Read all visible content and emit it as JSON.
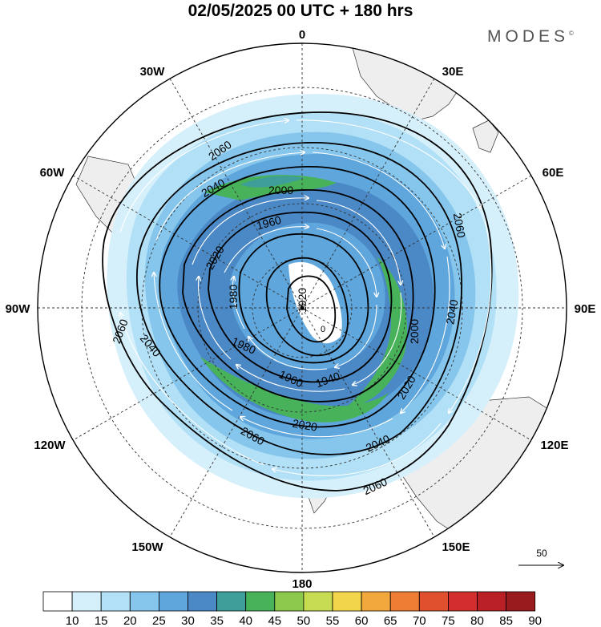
{
  "header": {
    "title": "02/05/2025  00 UTC  + 180 hrs",
    "brand": "MODES",
    "brand_mark": "©"
  },
  "map": {
    "projection": "south polar stereographic",
    "longitude_labels": {
      "top": "0",
      "top_left": "30W",
      "top_right": "30E",
      "upper_left": "60W",
      "upper_right": "60E",
      "left": "90W",
      "right": "90E",
      "lower_left": "120W",
      "lower_right": "120E",
      "bottom_left": "150W",
      "bottom_right": "150E",
      "bottom": "180"
    },
    "contour_labels": [
      "2060",
      "2040",
      "2020",
      "2000",
      "1980",
      "1960",
      "1940",
      "1920",
      "2060",
      "2040",
      "2020",
      "2000",
      "1980",
      "1960",
      "2060",
      "2040",
      "2020"
    ],
    "low_marker": "0",
    "reference_vector": {
      "label": "50"
    },
    "colors": {
      "land": "#eeeeee",
      "ocean": "#ffffff",
      "contour": "#000000",
      "wind_arrow": "#ffffff"
    }
  },
  "colorbar": {
    "ticks": [
      "10",
      "15",
      "20",
      "25",
      "30",
      "35",
      "40",
      "45",
      "50",
      "55",
      "60",
      "65",
      "70",
      "75",
      "80",
      "85",
      "90"
    ],
    "colors": [
      "#ffffff",
      "#d6f0fb",
      "#b2e0f6",
      "#86c6ec",
      "#5fa6dc",
      "#4b88c6",
      "#3d9e9a",
      "#47b25a",
      "#8bc84c",
      "#c7dc53",
      "#f2d54a",
      "#f3a83e",
      "#ec7d33",
      "#e0502f",
      "#d12e2d",
      "#b92026",
      "#9a1b1e"
    ]
  }
}
